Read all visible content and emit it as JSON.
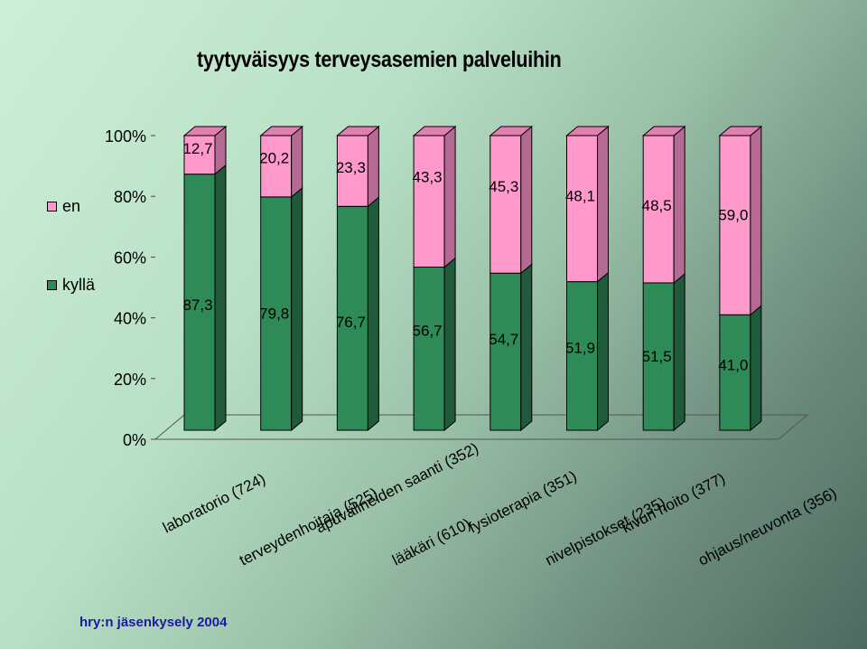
{
  "chart_data": {
    "type": "bar",
    "stacked": true,
    "percent_stacked": true,
    "title": "tyytyväisyys terveysasemien palveluihin",
    "categories": [
      "laboratorio (724)",
      "terveydenhoitaja (525)",
      "apuvälineiden saanti (352)",
      "lääkäri  (610)",
      "fysioterapia (351)",
      "nivelpistokset (235)",
      "kivun hoito (377)",
      "ohjaus/neuvonta (356)"
    ],
    "series": [
      {
        "name": "kyllä",
        "color": "#2e8b57",
        "values": [
          87.3,
          79.8,
          76.7,
          56.7,
          54.7,
          51.9,
          51.5,
          41.0
        ],
        "labels": [
          "87,3",
          "79,8",
          "76,7",
          "56,7",
          "54,7",
          "51,9",
          "51,5",
          "41,0"
        ]
      },
      {
        "name": "en",
        "color": "#ff99cc",
        "values": [
          12.7,
          20.2,
          23.3,
          43.3,
          45.3,
          48.1,
          48.5,
          59.0
        ],
        "labels": [
          "12,7",
          "20,2",
          "23,3",
          "43,3",
          "45,3",
          "48,1",
          "48,5",
          "59,0"
        ]
      }
    ],
    "yticks": [
      "0%",
      "20%",
      "40%",
      "60%",
      "80%",
      "100%"
    ],
    "ylim": [
      0,
      100
    ],
    "grid": false,
    "three_d": true,
    "legend_position": "left"
  },
  "legend": {
    "en": "en",
    "kylla": "kyllä"
  },
  "footer": "hry:n jäsenkysely 2004"
}
